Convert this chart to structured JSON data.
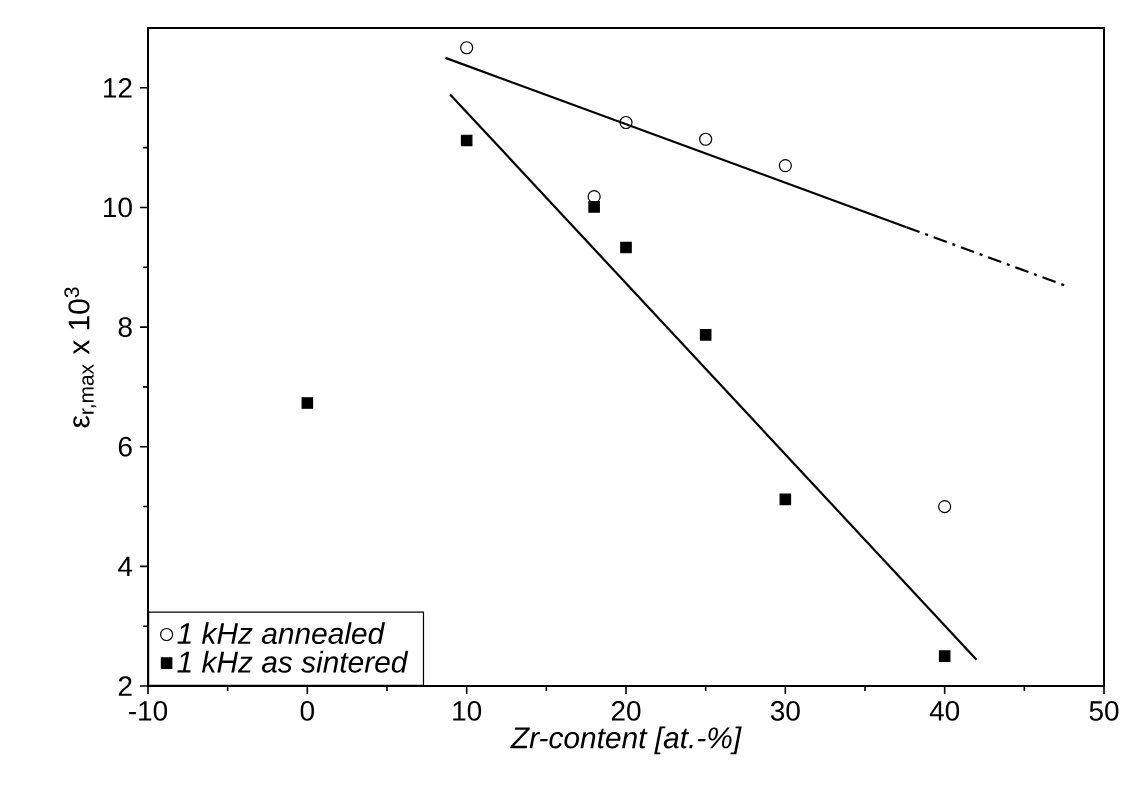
{
  "chart_data": {
    "type": "scatter",
    "xlabel": "Zr-content [at.-%]",
    "ylabel": "ε$_{r,max}$ x 10$^{3}$",
    "xlim": [
      -10,
      50
    ],
    "ylim": [
      2,
      13
    ],
    "xticks": [
      -10,
      0,
      10,
      20,
      30,
      40,
      50
    ],
    "yticks": [
      2,
      4,
      6,
      8,
      10,
      12
    ],
    "grid": false,
    "legend": "bottom left",
    "series": [
      {
        "name": "1 kHz annealed",
        "color": "#000000",
        "marker": "circle",
        "x": [
          10,
          18,
          20,
          25,
          30,
          40
        ],
        "values": [
          12.67,
          10.18,
          11.42,
          11.14,
          10.7,
          5.0
        ]
      },
      {
        "name": "1 kHz as sintered",
        "color": "#000000",
        "marker": "square",
        "x": [
          0,
          10,
          18,
          20,
          25,
          30,
          40
        ],
        "values": [
          6.73,
          11.12,
          10.01,
          9.33,
          7.87,
          5.12,
          2.5
        ]
      },
      {
        "type": "line",
        "color": "#000000",
        "line_style": "solid",
        "x": [
          8.67,
          37.6
        ],
        "values": [
          12.5,
          9.67
        ]
      },
      {
        "type": "line",
        "color": "#000000",
        "line_style": "dashed",
        "x": [
          37.6,
          47.5
        ],
        "values": [
          9.67,
          8.7
        ]
      },
      {
        "type": "line",
        "color": "#000000",
        "line_style": "solid",
        "x": [
          8.96,
          42.0
        ],
        "values": [
          11.89,
          2.44
        ]
      }
    ]
  }
}
